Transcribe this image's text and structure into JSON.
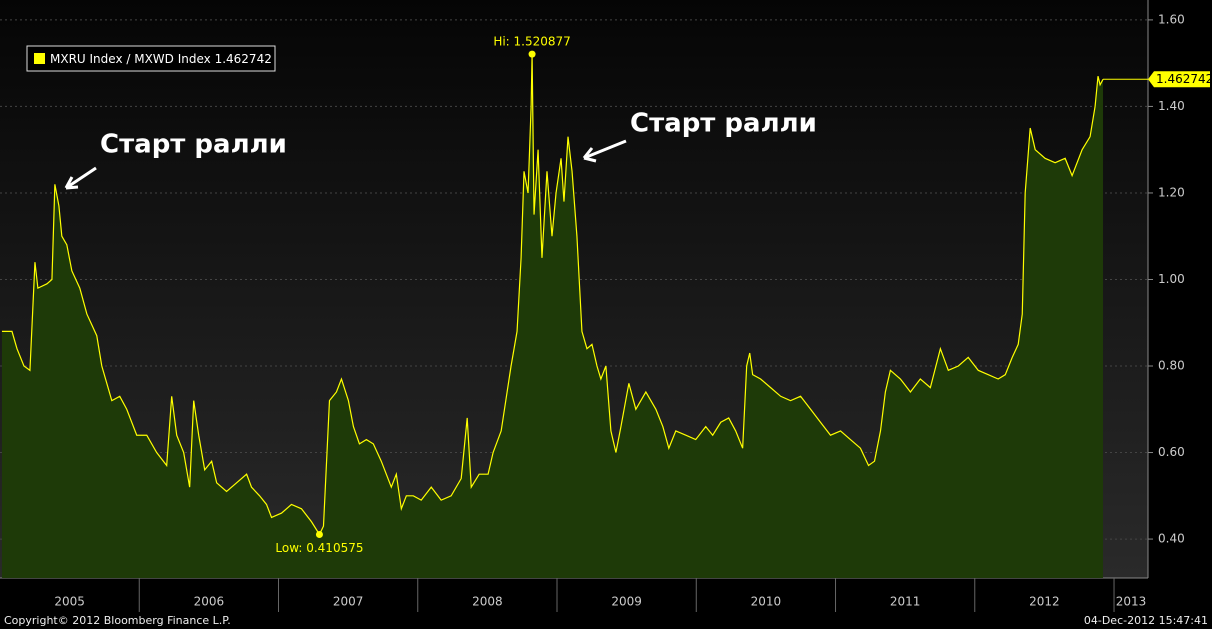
{
  "chart_data": {
    "type": "area",
    "series": [
      {
        "name": "MXRU Index / MXWD Index",
        "color": "#ffff00",
        "fill": "#1e3a08",
        "x": [
          2005.014,
          2005.086,
          2005.122,
          2005.172,
          2005.215,
          2005.251,
          2005.272,
          2005.337,
          2005.373,
          2005.394,
          2005.423,
          2005.444,
          2005.48,
          2005.516,
          2005.573,
          2005.624,
          2005.695,
          2005.731,
          2005.767,
          2005.803,
          2005.86,
          2005.91,
          2005.982,
          2006.054,
          2006.125,
          2006.197,
          2006.233,
          2006.269,
          2006.319,
          2006.362,
          2006.391,
          2006.427,
          2006.47,
          2006.52,
          2006.556,
          2006.627,
          2006.699,
          2006.771,
          2006.806,
          2006.864,
          2006.914,
          2006.95,
          2007.022,
          2007.093,
          2007.165,
          2007.237,
          2007.294,
          2007.323,
          2007.366,
          2007.416,
          2007.452,
          2007.502,
          2007.538,
          2007.581,
          2007.631,
          2007.681,
          2007.738,
          2007.81,
          2007.846,
          2007.882,
          2007.918,
          2007.968,
          2008.025,
          2008.097,
          2008.168,
          2008.24,
          2008.312,
          2008.355,
          2008.384,
          2008.441,
          2008.505,
          2008.541,
          2008.599,
          2008.67,
          2008.713,
          2008.742,
          2008.763,
          2008.792,
          2008.814,
          2008.821,
          2008.835,
          2008.864,
          2008.892,
          2008.928,
          2008.964,
          2008.993,
          2009.029,
          2009.05,
          2009.079,
          2009.108,
          2009.143,
          2009.179,
          2009.215,
          2009.251,
          2009.287,
          2009.315,
          2009.351,
          2009.387,
          2009.423,
          2009.459,
          2009.516,
          2009.566,
          2009.638,
          2009.71,
          2009.76,
          2009.803,
          2009.853,
          2009.925,
          2009.996,
          2010.068,
          2010.118,
          2010.176,
          2010.233,
          2010.283,
          2010.333,
          2010.362,
          2010.384,
          2010.405,
          2010.462,
          2010.534,
          2010.606,
          2010.677,
          2010.749,
          2010.821,
          2010.892,
          2010.964,
          2011.036,
          2011.107,
          2011.179,
          2011.237,
          2011.28,
          2011.323,
          2011.358,
          2011.394,
          2011.466,
          2011.538,
          2011.609,
          2011.681,
          2011.753,
          2011.81,
          2011.882,
          2011.953,
          2012.025,
          2012.097,
          2012.168,
          2012.219,
          2012.269,
          2012.312,
          2012.341,
          2012.362,
          2012.398,
          2012.434,
          2012.505,
          2012.577,
          2012.649,
          2012.699,
          2012.771,
          2012.828,
          2012.864,
          2012.885,
          2012.9,
          2012.921
        ],
        "values": [
          0.88,
          0.88,
          0.84,
          0.8,
          0.79,
          1.04,
          0.98,
          0.99,
          1.0,
          1.22,
          1.17,
          1.1,
          1.08,
          1.02,
          0.98,
          0.92,
          0.87,
          0.8,
          0.76,
          0.72,
          0.73,
          0.7,
          0.64,
          0.64,
          0.6,
          0.57,
          0.73,
          0.64,
          0.6,
          0.52,
          0.72,
          0.64,
          0.56,
          0.58,
          0.53,
          0.51,
          0.53,
          0.55,
          0.52,
          0.5,
          0.48,
          0.45,
          0.46,
          0.48,
          0.47,
          0.44,
          0.410575,
          0.43,
          0.72,
          0.74,
          0.77,
          0.72,
          0.66,
          0.62,
          0.63,
          0.62,
          0.58,
          0.52,
          0.55,
          0.47,
          0.5,
          0.5,
          0.49,
          0.52,
          0.49,
          0.5,
          0.54,
          0.68,
          0.52,
          0.55,
          0.55,
          0.6,
          0.65,
          0.8,
          0.88,
          1.05,
          1.25,
          1.2,
          1.4,
          1.520877,
          1.15,
          1.3,
          1.05,
          1.25,
          1.1,
          1.2,
          1.28,
          1.18,
          1.33,
          1.25,
          1.1,
          0.88,
          0.84,
          0.85,
          0.8,
          0.77,
          0.8,
          0.65,
          0.6,
          0.66,
          0.76,
          0.7,
          0.74,
          0.7,
          0.66,
          0.61,
          0.65,
          0.64,
          0.63,
          0.66,
          0.64,
          0.67,
          0.68,
          0.65,
          0.61,
          0.8,
          0.83,
          0.78,
          0.77,
          0.75,
          0.73,
          0.72,
          0.73,
          0.7,
          0.67,
          0.64,
          0.65,
          0.63,
          0.61,
          0.57,
          0.58,
          0.65,
          0.74,
          0.79,
          0.77,
          0.74,
          0.77,
          0.75,
          0.84,
          0.79,
          0.8,
          0.82,
          0.79,
          0.78,
          0.77,
          0.78,
          0.82,
          0.85,
          0.92,
          1.2,
          1.35,
          1.3,
          1.28,
          1.27,
          1.28,
          1.24,
          1.3,
          1.33,
          1.4,
          1.47,
          1.45,
          1.462742
        ]
      }
    ],
    "last_value": {
      "value": 1.462742,
      "label": "1.462742"
    },
    "high": {
      "x": 2008.821,
      "value": 1.520877,
      "label": "Hi: 1.520877"
    },
    "low": {
      "x": 2007.294,
      "value": 0.410575,
      "label": "Low: 0.410575"
    },
    "annotations": [
      "Старт ралли",
      "Старт ралли"
    ],
    "xlim": [
      2005,
      2013.244
    ],
    "xticks": [
      2006,
      2007,
      2008,
      2009,
      2010,
      2011,
      2012,
      2013
    ],
    "year_labels": [
      2005,
      2006,
      2007,
      2008,
      2009,
      2010,
      2011,
      2012,
      2013
    ],
    "ylim": [
      0.31,
      1.646
    ],
    "yticks": [
      {
        "value": 0.4,
        "label": "0.40"
      },
      {
        "value": 0.6,
        "label": "0.60"
      },
      {
        "value": 0.8,
        "label": "0.80"
      },
      {
        "value": 1.0,
        "label": "1.00"
      },
      {
        "value": 1.2,
        "label": "1.20"
      },
      {
        "value": 1.4,
        "label": "1.40"
      },
      {
        "value": 1.6,
        "label": "1.60"
      }
    ],
    "grid": true,
    "footer": {
      "copyright": "Copyright© 2012 Bloomberg Finance L.P.",
      "timestamp": "04-Dec-2012 15:47:41"
    }
  }
}
